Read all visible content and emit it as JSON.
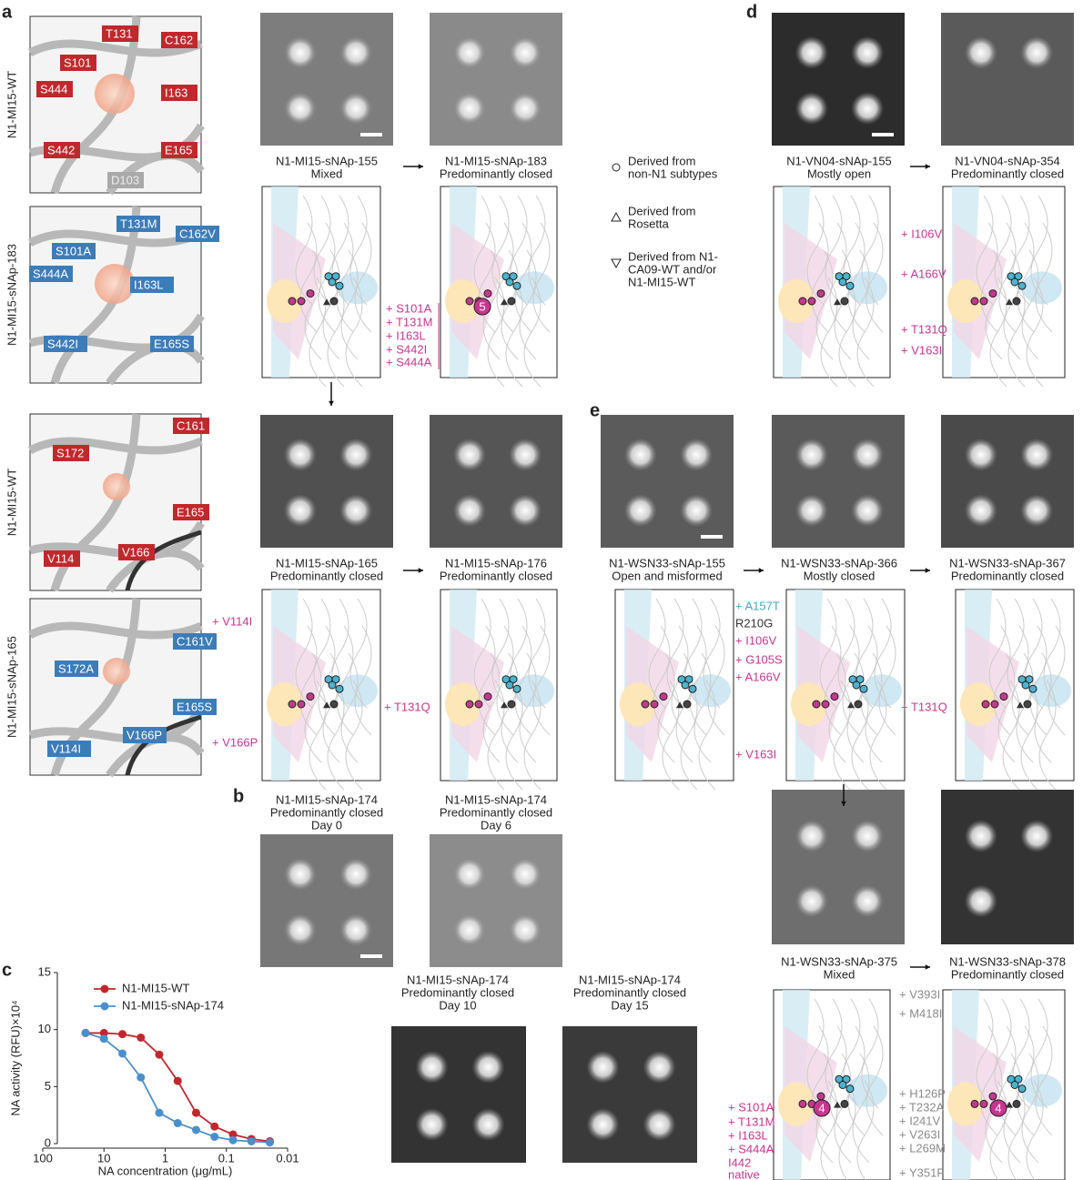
{
  "panel_labels": [
    "a",
    "b",
    "c",
    "d",
    "e"
  ],
  "structures": [
    {
      "label": "N1-MI15-WT",
      "residues": [
        "T131",
        "C162",
        "S101",
        "I163",
        "S444",
        "S442",
        "E165",
        "D103"
      ]
    },
    {
      "label": "N1-MI15-sNAp-183",
      "residues": [
        "T131M",
        "C162V",
        "S101A",
        "S444A",
        "I163L",
        "S442I",
        "E165S"
      ]
    },
    {
      "label": "N1-MI15-WT",
      "residues": [
        "C161",
        "S172",
        "E165",
        "V114",
        "V166"
      ]
    },
    {
      "label": "N1-MI15-sNAp-165",
      "residues": [
        "C161V",
        "S172A",
        "E165S",
        "V114I",
        "V166P"
      ]
    }
  ],
  "classes": [
    {
      "lines": [
        "N1-MI15-sNAp-155",
        "Mixed"
      ]
    },
    {
      "lines": [
        "N1-MI15-sNAp-183",
        "Predominantly closed"
      ]
    },
    {
      "lines": [
        "N1-VN04-sNAp-155",
        "Mostly open"
      ]
    },
    {
      "lines": [
        "N1-VN04-sNAp-354",
        "Predominantly closed"
      ]
    },
    {
      "lines": [
        "N1-MI15-sNAp-165",
        "Predominantly closed"
      ]
    },
    {
      "lines": [
        "N1-MI15-sNAp-176",
        "Predominantly closed"
      ]
    },
    {
      "lines": [
        "N1-WSN33-sNAp-155",
        "Open and misformed"
      ]
    },
    {
      "lines": [
        "N1-WSN33-sNAp-366",
        "Mostly closed"
      ]
    },
    {
      "lines": [
        "N1-WSN33-sNAp-367",
        "Predominantly closed"
      ]
    },
    {
      "lines": [
        "N1-MI15-sNAp-174",
        "Predominantly closed",
        "Day 0"
      ]
    },
    {
      "lines": [
        "N1-MI15-sNAp-174",
        "Predominantly closed",
        "Day 6"
      ]
    },
    {
      "lines": [
        "N1-MI15-sNAp-174",
        "Predominantly closed",
        "Day 10"
      ]
    },
    {
      "lines": [
        "N1-MI15-sNAp-174",
        "Predominantly closed",
        "Day 15"
      ]
    },
    {
      "lines": [
        "N1-WSN33-sNAp-375",
        "Mixed"
      ]
    },
    {
      "lines": [
        "N1-WSN33-sNAp-378",
        "Predominantly closed"
      ]
    }
  ],
  "legend": [
    {
      "lines": [
        "Derived from",
        "non-N1 subtypes"
      ]
    },
    {
      "lines": [
        "Derived from",
        "Rosetta"
      ]
    },
    {
      "lines": [
        "Derived from N1-",
        "CA09-WT and/or",
        "N1-MI15-WT"
      ]
    }
  ],
  "mutations": [
    {
      "items": [
        "+ S101A",
        "+ T131M",
        "+ I163L",
        "+ S442I",
        "+ S444A"
      ],
      "badge": 5
    },
    {
      "items": [
        "+ I106V",
        "+ A166V",
        "+ T131Q",
        "+ V163I"
      ]
    },
    {
      "items": [
        "+ V114I",
        "+ V166P"
      ]
    },
    {
      "items": [
        "+ T131Q"
      ]
    },
    {
      "items": [
        "+ A157T",
        "R210G",
        "+ I106V",
        "+ G105S",
        "+ A166V",
        "+ V163I"
      ]
    },
    {
      "items": [
        "+ T131Q"
      ]
    },
    {
      "items": [
        "+ S101A",
        "+ T131M",
        "+ I163L",
        "+ S444A",
        "I442",
        "native"
      ],
      "badge": 4
    },
    {
      "items": [
        "+ V393I",
        "+ M418I",
        "+ H126P",
        "+ T232A",
        "+ I241V",
        "+ V263I",
        "+ L269M",
        "+ Y351F"
      ],
      "badge": 4
    }
  ],
  "chart_data": {
    "type": "line",
    "xlabel": "NA concentration (μg/mL)",
    "ylabel": "NA activity (RFU)×10⁴",
    "x": [
      20,
      10,
      5,
      2.5,
      1.25,
      0.625,
      0.3125,
      0.156,
      0.078,
      0.039,
      0.0195
    ],
    "series": [
      {
        "name": "N1-MI15-WT",
        "color": "#c1272d",
        "values": [
          9.7,
          9.7,
          9.6,
          9.3,
          7.8,
          5.5,
          2.7,
          1.5,
          0.8,
          0.4,
          0.2
        ]
      },
      {
        "name": "N1-MI15-sNAp-174",
        "color": "#4a8fcc",
        "values": [
          9.7,
          9.2,
          7.9,
          5.8,
          2.7,
          1.8,
          1.2,
          0.6,
          0.3,
          0.2,
          0.1
        ]
      }
    ],
    "xscale": "log",
    "xlim": [
      100,
      0.01
    ],
    "xticks": [
      100,
      10,
      1,
      0.1,
      0.01
    ],
    "ylim": [
      0,
      15
    ],
    "yticks": [
      0,
      5,
      10,
      15
    ],
    "legend": "upper left"
  }
}
